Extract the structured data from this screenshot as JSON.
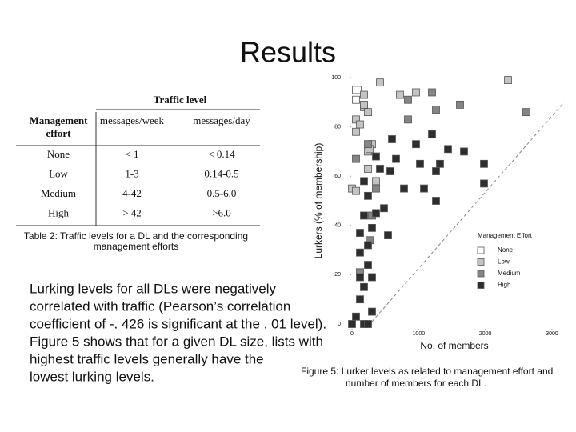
{
  "title": "Results",
  "table": {
    "group_header": "Traffic level",
    "row_header": [
      "Management",
      "effort"
    ],
    "columns": [
      "messages/week",
      "messages/day"
    ],
    "rows": [
      [
        "None",
        "< 1",
        "< 0.14"
      ],
      [
        "Low",
        "1-3",
        "0.14-0.5"
      ],
      [
        "Medium",
        "4-42",
        "0.5-6.0"
      ],
      [
        "High",
        "> 42",
        ">6.0"
      ]
    ],
    "caption": [
      "Table 2: Traffic levels for a DL and the corresponding",
      "management efforts"
    ]
  },
  "paragraph": [
    "Lurking levels for all DLs were negatively",
    "correlated with traffic (Pearson’s correlation",
    "coefficient of -. 426 is significant at the . 01 level).",
    "Figure 5 shows that for a given DL size, lists with",
    "highest traffic levels generally have the",
    "lowest lurking levels."
  ],
  "chart_data": {
    "type": "scatter",
    "x_label": "No. of members",
    "y_label": "Lurkers (% of membership)",
    "caption": [
      "Figure 5:  Lurker levels as related to management effort and",
      "number of members for each DL."
    ],
    "legend_title": "Management Effort",
    "legend_position": "right",
    "xlim": [
      0,
      3000
    ],
    "xticks": [
      0,
      1000,
      2000,
      3000
    ],
    "ylim": [
      0,
      100
    ],
    "yticks": [
      0,
      20,
      40,
      60,
      80,
      100
    ],
    "series": [
      {
        "name": "None",
        "color": "#ffffff",
        "x": [
          60,
          60,
          84
        ],
        "values": [
          95,
          91,
          95
        ]
      },
      {
        "name": "Low",
        "color": "#c4c4c4",
        "x": [
          420,
          2340,
          180,
          720,
          960,
          180,
          240,
          60,
          120,
          60,
          300,
          240,
          0,
          60,
          240,
          360,
          180,
          264
        ],
        "values": [
          98,
          99,
          93,
          93,
          94,
          88,
          86,
          83,
          81,
          78,
          73,
          70,
          55,
          54,
          63,
          58,
          89,
          71
        ]
      },
      {
        "name": "Medium",
        "color": "#858585",
        "x": [
          1200,
          1620,
          840,
          840,
          1260,
          2616,
          60,
          240,
          360,
          300,
          120,
          264
        ],
        "values": [
          94,
          89,
          91,
          83,
          87,
          86,
          67,
          73,
          55,
          44,
          21,
          34
        ]
      },
      {
        "name": "High",
        "color": "#2e2e2e",
        "x": [
          600,
          960,
          1200,
          1440,
          1680,
          1980,
          1020,
          1260,
          1320,
          660,
          576,
          780,
          1080,
          1260,
          1980,
          360,
          420,
          180,
          240,
          480,
          360,
          180,
          300,
          120,
          540,
          240,
          120,
          240,
          120,
          300,
          180,
          120,
          300,
          60,
          180,
          0,
          240
        ],
        "values": [
          75,
          73,
          77,
          71,
          70,
          65,
          65,
          62,
          65,
          67,
          62,
          55,
          55,
          50,
          57,
          68,
          63,
          58,
          52,
          47,
          45,
          44,
          39,
          37,
          36,
          32,
          29,
          24,
          19,
          19,
          15,
          10,
          5,
          3,
          0,
          0,
          0
        ]
      }
    ]
  }
}
